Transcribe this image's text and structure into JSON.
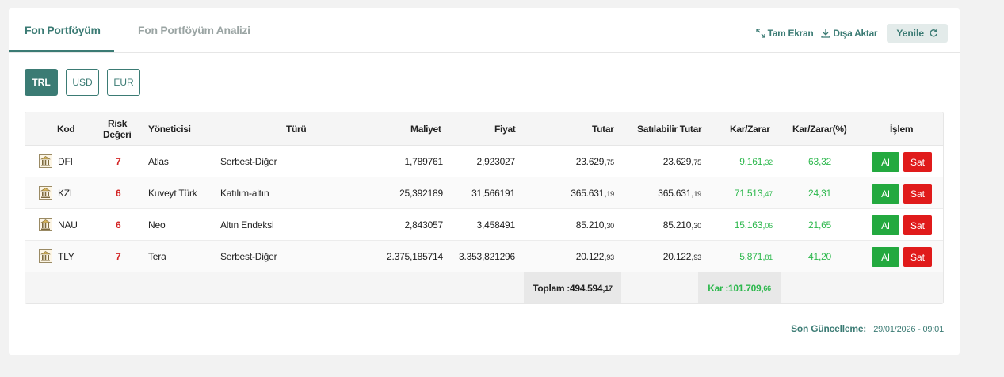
{
  "tabs": [
    {
      "label": "Fon Portföyüm",
      "active": true
    },
    {
      "label": "Fon Portföyüm Analizi",
      "active": false
    }
  ],
  "actions": {
    "fullscreen": "Tam Ekran",
    "export": "Dışa Aktar",
    "refresh": "Yenile"
  },
  "currencies": [
    "TRL",
    "USD",
    "EUR"
  ],
  "selected_currency": "TRL",
  "table": {
    "headers": {
      "kod": "Kod",
      "risk_line1": "Risk",
      "risk_line2": "Değeri",
      "yonetici": "Yöneticisi",
      "turu": "Türü",
      "maliyet": "Maliyet",
      "fiyat": "Fiyat",
      "tutar": "Tutar",
      "satilabilir": "Satılabilir Tutar",
      "karzarar": "Kar/Zarar",
      "karzarar_pct": "Kar/Zarar(%)",
      "islem": "İşlem"
    },
    "rows": [
      {
        "kod": "DFI",
        "risk": "7",
        "yonetici": "Atlas",
        "turu": "Serbest-Diğer",
        "maliyet": "1,789761",
        "fiyat": "2,923027",
        "tutar_int": "23.629,",
        "tutar_dec": "75",
        "sat_int": "23.629,",
        "sat_dec": "75",
        "kar_int": "9.161,",
        "kar_dec": "32",
        "kar_pct": "63,32",
        "al": "Al",
        "sat": "Sat"
      },
      {
        "kod": "KZL",
        "risk": "6",
        "yonetici": "Kuveyt Türk",
        "turu": "Katılım-altın",
        "maliyet": "25,392189",
        "fiyat": "31,566191",
        "tutar_int": "365.631,",
        "tutar_dec": "19",
        "sat_int": "365.631,",
        "sat_dec": "19",
        "kar_int": "71.513,",
        "kar_dec": "47",
        "kar_pct": "24,31",
        "al": "Al",
        "sat": "Sat"
      },
      {
        "kod": "NAU",
        "risk": "6",
        "yonetici": "Neo",
        "turu": "Altın Endeksi",
        "maliyet": "2,843057",
        "fiyat": "3,458491",
        "tutar_int": "85.210,",
        "tutar_dec": "30",
        "sat_int": "85.210,",
        "sat_dec": "30",
        "kar_int": "15.163,",
        "kar_dec": "06",
        "kar_pct": "21,65",
        "al": "Al",
        "sat": "Sat"
      },
      {
        "kod": "TLY",
        "risk": "7",
        "yonetici": "Tera",
        "turu": "Serbest-Diğer",
        "maliyet": "2.375,185714",
        "fiyat": "3.353,821296",
        "tutar_int": "20.122,",
        "tutar_dec": "93",
        "sat_int": "20.122,",
        "sat_dec": "93",
        "kar_int": "5.871,",
        "kar_dec": "81",
        "kar_pct": "41,20",
        "al": "Al",
        "sat": "Sat"
      }
    ],
    "totals": {
      "toplam_label": "Toplam :",
      "toplam_int": "494.594,",
      "toplam_dec": "17",
      "kar_label": "Kar :",
      "kar_int": "101.709,",
      "kar_dec": "66"
    }
  },
  "last_update": {
    "label": "Son Güncelleme:",
    "value": "29/01/2026 - 09:01"
  },
  "colors": {
    "accent": "#3b7b74",
    "buy": "#23a93f",
    "sell": "#e01b1b",
    "profit": "#2db84d",
    "risk": "#d32424"
  }
}
